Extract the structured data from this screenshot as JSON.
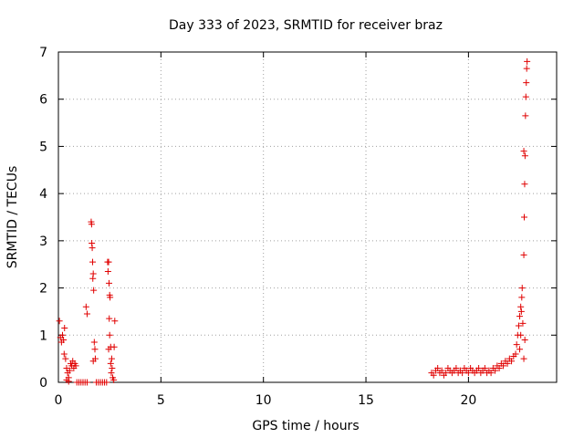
{
  "chart_data": {
    "type": "scatter",
    "title": "Day 333 of 2023, SRMTID for receiver braz",
    "xlabel": "GPS time / hours",
    "ylabel": "SRMTID / TECUs",
    "xlim": [
      0,
      24.3
    ],
    "ylim": [
      0,
      7
    ],
    "x_ticks": [
      "0",
      "5",
      "10",
      "15",
      "20"
    ],
    "x_tick_values": [
      0,
      5,
      10,
      15,
      20
    ],
    "y_ticks": [
      "0",
      "1",
      "2",
      "3",
      "4",
      "5",
      "6",
      "7"
    ],
    "y_tick_values": [
      0,
      1,
      2,
      3,
      4,
      5,
      6,
      7
    ],
    "grid": true,
    "marker": "plus",
    "color": "#e00000",
    "series": [
      {
        "name": "SRMTID",
        "points": [
          [
            0.05,
            1.3
          ],
          [
            0.1,
            0.95
          ],
          [
            0.15,
            0.85
          ],
          [
            0.2,
            1.0
          ],
          [
            0.25,
            0.9
          ],
          [
            0.3,
            1.15
          ],
          [
            0.28,
            0.6
          ],
          [
            0.35,
            0.5
          ],
          [
            0.4,
            0.3
          ],
          [
            0.45,
            0.2
          ],
          [
            0.5,
            0.1
          ],
          [
            0.55,
            0.25
          ],
          [
            0.6,
            0.4
          ],
          [
            0.65,
            0.35
          ],
          [
            0.7,
            0.45
          ],
          [
            0.75,
            0.3
          ],
          [
            0.8,
            0.4
          ],
          [
            0.85,
            0.35
          ],
          [
            0.4,
            0.05
          ],
          [
            0.5,
            0.02
          ],
          [
            0.9,
            0.0
          ],
          [
            1.0,
            0.0
          ],
          [
            1.1,
            0.0
          ],
          [
            1.2,
            0.0
          ],
          [
            1.3,
            0.0
          ],
          [
            1.4,
            0.0
          ],
          [
            1.35,
            1.6
          ],
          [
            1.4,
            1.45
          ],
          [
            1.6,
            3.4
          ],
          [
            1.62,
            3.35
          ],
          [
            1.63,
            2.95
          ],
          [
            1.65,
            2.85
          ],
          [
            1.67,
            2.55
          ],
          [
            1.7,
            2.3
          ],
          [
            1.68,
            2.2
          ],
          [
            1.72,
            1.95
          ],
          [
            1.75,
            0.85
          ],
          [
            1.78,
            0.7
          ],
          [
            1.8,
            0.5
          ],
          [
            1.7,
            0.45
          ],
          [
            1.85,
            0.0
          ],
          [
            1.95,
            0.0
          ],
          [
            2.05,
            0.0
          ],
          [
            2.15,
            0.0
          ],
          [
            2.25,
            0.0
          ],
          [
            2.35,
            0.0
          ],
          [
            2.4,
            2.55
          ],
          [
            2.45,
            2.55
          ],
          [
            2.42,
            2.35
          ],
          [
            2.47,
            2.1
          ],
          [
            2.5,
            1.85
          ],
          [
            2.52,
            1.8
          ],
          [
            2.48,
            1.35
          ],
          [
            2.5,
            1.0
          ],
          [
            2.55,
            0.75
          ],
          [
            2.45,
            0.7
          ],
          [
            2.6,
            0.5
          ],
          [
            2.55,
            0.4
          ],
          [
            2.62,
            0.3
          ],
          [
            2.58,
            0.2
          ],
          [
            2.65,
            0.1
          ],
          [
            2.7,
            0.05
          ],
          [
            2.72,
            0.75
          ],
          [
            2.75,
            1.3
          ],
          [
            18.2,
            0.2
          ],
          [
            18.3,
            0.15
          ],
          [
            18.4,
            0.25
          ],
          [
            18.5,
            0.3
          ],
          [
            18.6,
            0.2
          ],
          [
            18.7,
            0.25
          ],
          [
            18.8,
            0.15
          ],
          [
            18.9,
            0.2
          ],
          [
            19.0,
            0.3
          ],
          [
            19.1,
            0.25
          ],
          [
            19.2,
            0.2
          ],
          [
            19.3,
            0.25
          ],
          [
            19.4,
            0.3
          ],
          [
            19.5,
            0.2
          ],
          [
            19.6,
            0.25
          ],
          [
            19.7,
            0.2
          ],
          [
            19.8,
            0.3
          ],
          [
            19.9,
            0.25
          ],
          [
            20.0,
            0.2
          ],
          [
            20.1,
            0.3
          ],
          [
            20.2,
            0.25
          ],
          [
            20.3,
            0.2
          ],
          [
            20.4,
            0.25
          ],
          [
            20.5,
            0.3
          ],
          [
            20.6,
            0.2
          ],
          [
            20.7,
            0.25
          ],
          [
            20.8,
            0.3
          ],
          [
            20.9,
            0.2
          ],
          [
            21.0,
            0.25
          ],
          [
            21.1,
            0.2
          ],
          [
            21.2,
            0.3
          ],
          [
            21.3,
            0.25
          ],
          [
            21.4,
            0.35
          ],
          [
            21.5,
            0.3
          ],
          [
            21.6,
            0.4
          ],
          [
            21.7,
            0.35
          ],
          [
            21.8,
            0.45
          ],
          [
            21.9,
            0.4
          ],
          [
            22.0,
            0.5
          ],
          [
            22.1,
            0.45
          ],
          [
            22.2,
            0.55
          ],
          [
            22.3,
            0.6
          ],
          [
            22.35,
            0.8
          ],
          [
            22.4,
            1.0
          ],
          [
            22.45,
            1.2
          ],
          [
            22.5,
            1.4
          ],
          [
            22.55,
            1.6
          ],
          [
            22.6,
            1.8
          ],
          [
            22.62,
            2.0
          ],
          [
            22.58,
            1.5
          ],
          [
            22.55,
            1.0
          ],
          [
            22.5,
            0.7
          ],
          [
            22.65,
            1.25
          ],
          [
            22.7,
            2.7
          ],
          [
            22.72,
            3.5
          ],
          [
            22.74,
            4.2
          ],
          [
            22.76,
            4.8
          ],
          [
            22.78,
            5.65
          ],
          [
            22.8,
            6.05
          ],
          [
            22.82,
            6.35
          ],
          [
            22.84,
            6.65
          ],
          [
            22.86,
            6.8
          ],
          [
            22.7,
            4.9
          ],
          [
            22.75,
            0.9
          ],
          [
            22.7,
            0.5
          ]
        ]
      }
    ]
  }
}
